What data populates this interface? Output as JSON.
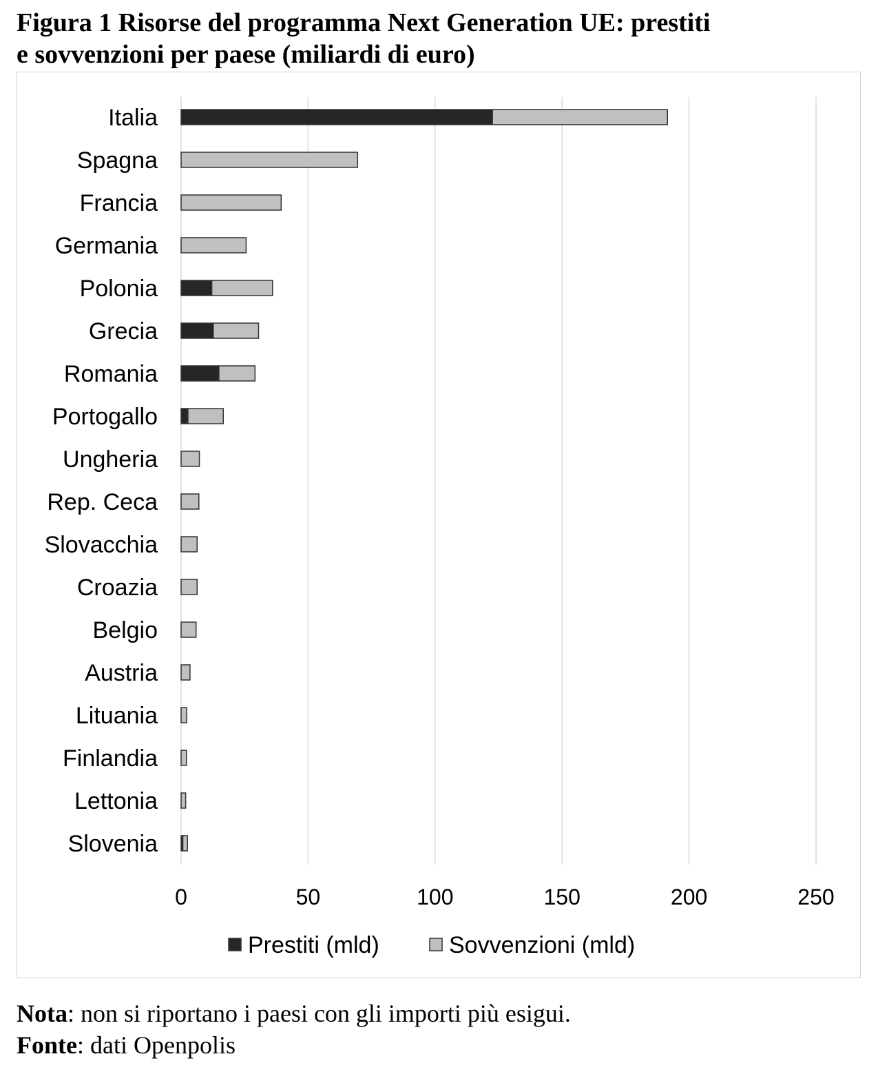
{
  "figure": {
    "title_line1": "Figura 1 Risorse del programma Next Generation UE: prestiti",
    "title_line2": "e sovvenzioni per paese (miliardi di euro)"
  },
  "notes": {
    "nota_label": "Nota",
    "nota_text": ": non si riportano i paesi con gli importi più esigui.",
    "fonte_label": "Fonte",
    "fonte_text": ": dati Openpolis"
  },
  "chart_data": {
    "type": "bar",
    "orientation": "horizontal",
    "stacked": true,
    "categories": [
      "Italia",
      "Spagna",
      "Francia",
      "Germania",
      "Polonia",
      "Grecia",
      "Romania",
      "Portogallo",
      "Ungheria",
      "Rep. Ceca",
      "Slovacchia",
      "Croazia",
      "Belgio",
      "Austria",
      "Lituania",
      "Finlandia",
      "Lettonia",
      "Slovenia"
    ],
    "series": [
      {
        "name": "Prestiti (mld)",
        "color": "#262626",
        "values": [
          122.6,
          0,
          0,
          0,
          12.1,
          12.7,
          14.9,
          2.7,
          0,
          0,
          0,
          0,
          0,
          0,
          0,
          0,
          0,
          0.7
        ]
      },
      {
        "name": "Sovvenzioni (mld)",
        "color": "#c0c0c0",
        "values": [
          68.9,
          69.5,
          39.4,
          25.6,
          23.9,
          17.8,
          14.2,
          13.9,
          7.2,
          7.0,
          6.3,
          6.3,
          5.9,
          3.5,
          2.2,
          2.1,
          1.8,
          1.8
        ]
      }
    ],
    "xlim": [
      0,
      250
    ],
    "xticks": [
      0,
      50,
      100,
      150,
      200,
      250
    ],
    "grid": true,
    "legend_position": "bottom"
  }
}
